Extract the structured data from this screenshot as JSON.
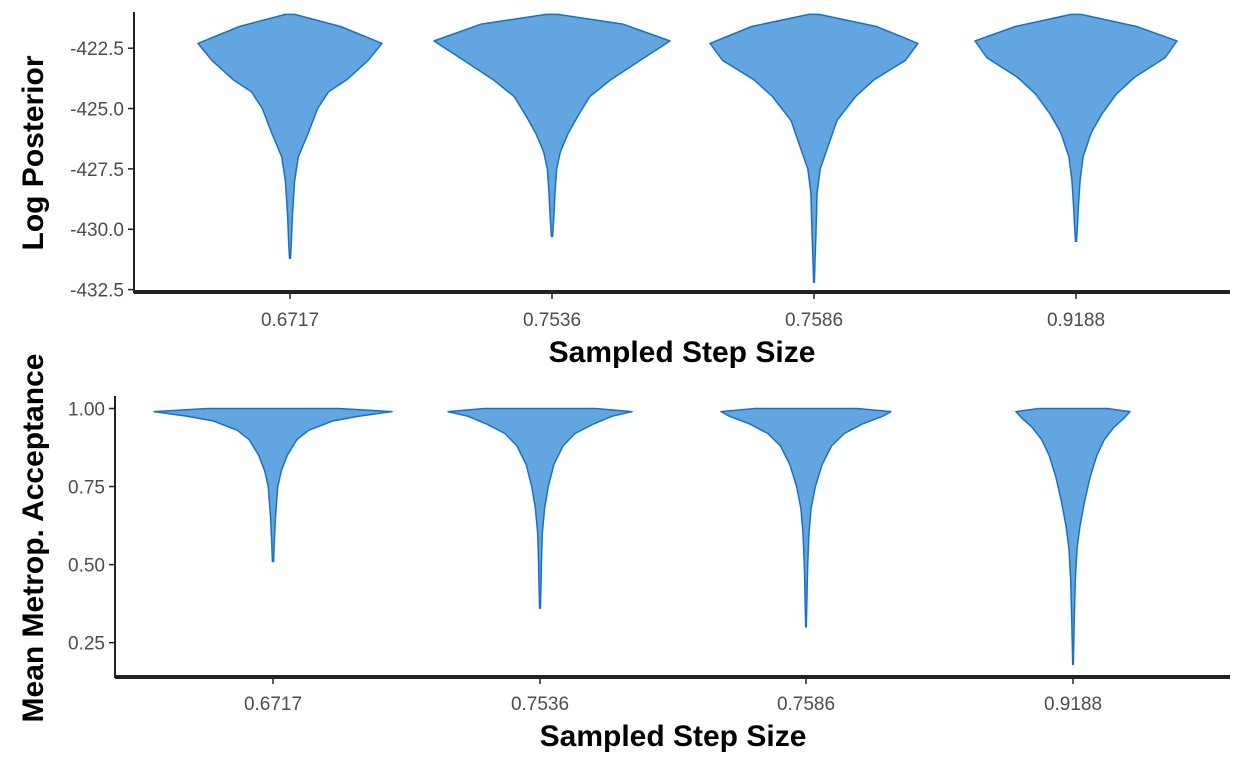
{
  "colors": {
    "violin_fill": "#62A6E0",
    "violin_stroke": "#1770CC",
    "axis": "#222222",
    "tick_text": "#4d4d4d",
    "title_text": "#000000"
  },
  "chart_data": [
    {
      "type": "violin",
      "xlabel": "Sampled Step Size",
      "ylabel": "Log Posterior",
      "categories": [
        "0.6717",
        "0.7536",
        "0.7586",
        "0.9188"
      ],
      "ylim": [
        -432.6,
        -421.0
      ],
      "yticks": [
        -422.5,
        -425.0,
        -427.5,
        -430.0,
        -432.5
      ],
      "ytick_labels": [
        "-422.5",
        "-425.0",
        -427.5,
        "-430.0",
        "-432.5"
      ],
      "grid": false,
      "violins": [
        {
          "category": "0.6717",
          "max": -421.1,
          "min": -431.2,
          "profile": [
            [
              -421.1,
              0.05
            ],
            [
              -421.6,
              0.55
            ],
            [
              -422.3,
              1.0
            ],
            [
              -423.0,
              0.85
            ],
            [
              -423.8,
              0.62
            ],
            [
              -424.3,
              0.42
            ],
            [
              -425.0,
              0.3
            ],
            [
              -426.0,
              0.2
            ],
            [
              -427.0,
              0.09
            ],
            [
              -428.0,
              0.05
            ],
            [
              -429.5,
              0.025
            ],
            [
              -430.5,
              0.015
            ],
            [
              -431.2,
              0.005
            ]
          ]
        },
        {
          "category": "0.7536",
          "max": -421.1,
          "min": -430.3,
          "profile": [
            [
              -421.1,
              0.05
            ],
            [
              -421.5,
              0.6
            ],
            [
              -422.2,
              1.0
            ],
            [
              -422.9,
              0.78
            ],
            [
              -423.8,
              0.5
            ],
            [
              -424.5,
              0.32
            ],
            [
              -425.3,
              0.22
            ],
            [
              -426.0,
              0.14
            ],
            [
              -426.8,
              0.07
            ],
            [
              -427.5,
              0.04
            ],
            [
              -428.5,
              0.025
            ],
            [
              -429.5,
              0.015
            ],
            [
              -430.3,
              0.005
            ]
          ]
        },
        {
          "category": "0.7586",
          "max": -421.1,
          "min": -432.2,
          "profile": [
            [
              -421.1,
              0.05
            ],
            [
              -421.6,
              0.6
            ],
            [
              -422.3,
              1.0
            ],
            [
              -423.0,
              0.88
            ],
            [
              -423.8,
              0.58
            ],
            [
              -424.5,
              0.4
            ],
            [
              -425.5,
              0.22
            ],
            [
              -426.5,
              0.14
            ],
            [
              -427.5,
              0.06
            ],
            [
              -428.5,
              0.03
            ],
            [
              -430.0,
              0.02
            ],
            [
              -431.3,
              0.01
            ],
            [
              -432.2,
              0.004
            ]
          ]
        },
        {
          "category": "0.9188",
          "max": -421.1,
          "min": -430.5,
          "profile": [
            [
              -421.1,
              0.05
            ],
            [
              -421.6,
              0.6
            ],
            [
              -422.2,
              1.0
            ],
            [
              -422.9,
              0.88
            ],
            [
              -423.7,
              0.58
            ],
            [
              -424.4,
              0.4
            ],
            [
              -425.2,
              0.26
            ],
            [
              -426.0,
              0.15
            ],
            [
              -427.0,
              0.07
            ],
            [
              -428.0,
              0.04
            ],
            [
              -429.0,
              0.025
            ],
            [
              -429.8,
              0.015
            ],
            [
              -430.5,
              0.005
            ]
          ]
        }
      ]
    },
    {
      "type": "violin",
      "xlabel": "Sampled Step Size",
      "ylabel": "Mean Metrop. Acceptance",
      "categories": [
        "0.6717",
        "0.7536",
        "0.7586",
        "0.9188"
      ],
      "ylim": [
        0.14,
        1.04
      ],
      "yticks": [
        1.0,
        0.75,
        0.5,
        0.25
      ],
      "ytick_labels": [
        "1.00",
        "0.75",
        "0.50",
        "0.25"
      ],
      "grid": false,
      "violins": [
        {
          "category": "0.6717",
          "max": 1.0,
          "min": 0.51,
          "profile": [
            [
              1.0,
              0.55
            ],
            [
              0.99,
              1.0
            ],
            [
              0.975,
              0.72
            ],
            [
              0.96,
              0.5
            ],
            [
              0.93,
              0.3
            ],
            [
              0.9,
              0.2
            ],
            [
              0.85,
              0.12
            ],
            [
              0.8,
              0.07
            ],
            [
              0.75,
              0.04
            ],
            [
              0.7,
              0.03
            ],
            [
              0.65,
              0.02
            ],
            [
              0.58,
              0.012
            ],
            [
              0.51,
              0.005
            ]
          ]
        },
        {
          "category": "0.7536",
          "max": 1.0,
          "min": 0.36,
          "profile": [
            [
              1.0,
              0.6
            ],
            [
              0.99,
              1.0
            ],
            [
              0.975,
              0.78
            ],
            [
              0.95,
              0.58
            ],
            [
              0.92,
              0.38
            ],
            [
              0.88,
              0.25
            ],
            [
              0.82,
              0.15
            ],
            [
              0.75,
              0.09
            ],
            [
              0.68,
              0.05
            ],
            [
              0.6,
              0.025
            ],
            [
              0.5,
              0.015
            ],
            [
              0.42,
              0.01
            ],
            [
              0.36,
              0.004
            ]
          ]
        },
        {
          "category": "0.7586",
          "max": 1.0,
          "min": 0.3,
          "profile": [
            [
              1.0,
              0.6
            ],
            [
              0.99,
              1.0
            ],
            [
              0.975,
              0.9
            ],
            [
              0.95,
              0.66
            ],
            [
              0.92,
              0.45
            ],
            [
              0.88,
              0.3
            ],
            [
              0.82,
              0.19
            ],
            [
              0.75,
              0.11
            ],
            [
              0.68,
              0.06
            ],
            [
              0.6,
              0.035
            ],
            [
              0.5,
              0.02
            ],
            [
              0.4,
              0.012
            ],
            [
              0.3,
              0.004
            ]
          ]
        },
        {
          "category": "0.9188",
          "max": 1.0,
          "min": 0.18,
          "profile": [
            [
              1.0,
              0.6
            ],
            [
              0.99,
              1.0
            ],
            [
              0.97,
              0.9
            ],
            [
              0.94,
              0.72
            ],
            [
              0.9,
              0.55
            ],
            [
              0.85,
              0.42
            ],
            [
              0.78,
              0.3
            ],
            [
              0.7,
              0.2
            ],
            [
              0.62,
              0.12
            ],
            [
              0.55,
              0.07
            ],
            [
              0.45,
              0.04
            ],
            [
              0.3,
              0.02
            ],
            [
              0.18,
              0.005
            ]
          ]
        }
      ]
    }
  ]
}
